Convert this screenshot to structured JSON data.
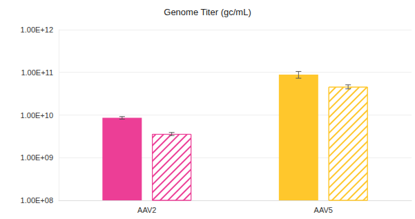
{
  "chart_data": {
    "type": "bar",
    "title": "Genome Titer (gc/mL)",
    "categories": [
      "AAV2",
      "AAV5"
    ],
    "series": [
      {
        "marker": "solid",
        "colors": [
          "#ec3e96",
          "#ffc72c"
        ],
        "values": [
          8600000000,
          89000000000
        ],
        "errors": [
          600000000,
          16000000000
        ]
      },
      {
        "marker": "hatched",
        "colors": [
          "#ec3e96",
          "#ffc72c"
        ],
        "values": [
          3600000000,
          46000000000
        ],
        "errors": [
          300000000,
          5000000000
        ]
      }
    ],
    "ylim": [
      100000000,
      1000000000000
    ],
    "yticks": [
      {
        "value": 100000000,
        "label": "1.00E+08"
      },
      {
        "value": 1000000000,
        "label": "1.00E+09"
      },
      {
        "value": 10000000000,
        "label": "1.00E+10"
      },
      {
        "value": 100000000000,
        "label": "1.00E+11"
      },
      {
        "value": 1000000000000,
        "label": "1.00E+12"
      }
    ],
    "log": "y",
    "grid": true
  }
}
